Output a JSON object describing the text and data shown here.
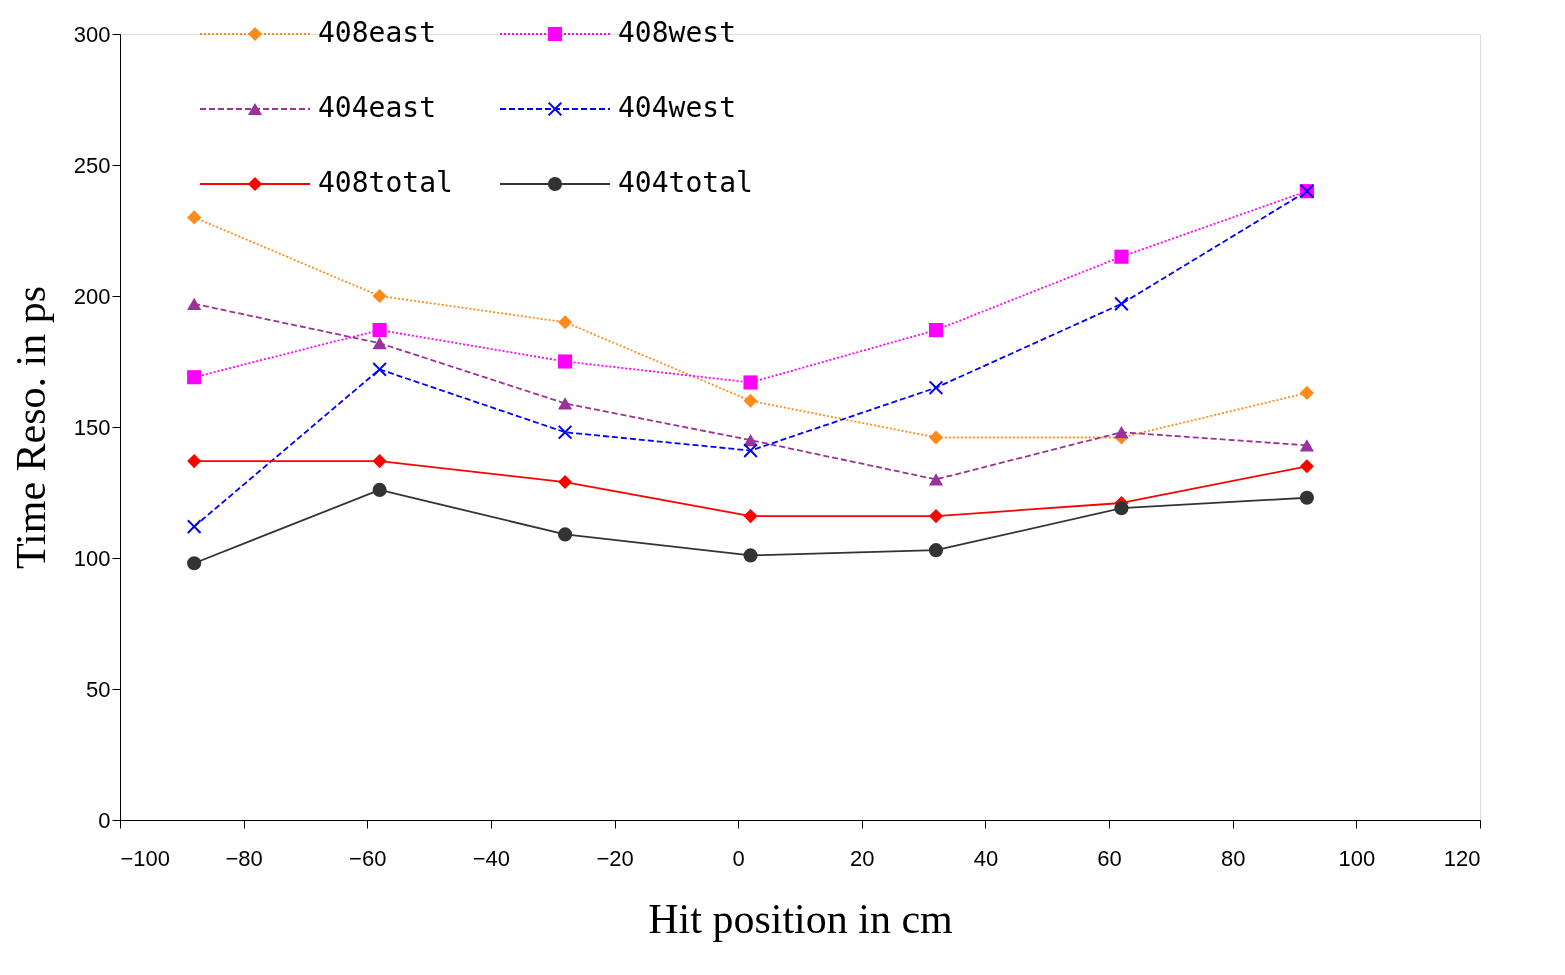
{
  "chart_data": {
    "type": "line",
    "xlabel": "Hit position in cm",
    "ylabel": "Time Reso. in ps",
    "x": [
      -88,
      -58,
      -28,
      2,
      32,
      62,
      92
    ],
    "xlim": [
      -100,
      120
    ],
    "xticks": [
      -100,
      -80,
      -60,
      -40,
      -20,
      0,
      20,
      40,
      60,
      80,
      100,
      120
    ],
    "ylim": [
      0,
      300
    ],
    "yticks": [
      0,
      50,
      100,
      150,
      200,
      250,
      300
    ],
    "grid": false,
    "legend": "top left",
    "series": [
      {
        "name": "408east",
        "color": "#ff8c1a",
        "marker": "diamond",
        "line_style": "dotted",
        "values": [
          230,
          200,
          190,
          160,
          146,
          146,
          163
        ]
      },
      {
        "name": "408west",
        "color": "#ff00ff",
        "marker": "square",
        "line_style": "dotted",
        "values": [
          169,
          187,
          175,
          167,
          187,
          215,
          240
        ]
      },
      {
        "name": "404east",
        "color": "#993399",
        "marker": "triangle",
        "line_style": "dashed",
        "values": [
          197,
          182,
          159,
          145,
          130,
          148,
          143
        ]
      },
      {
        "name": "404west",
        "color": "#0000ff",
        "marker": "cross",
        "line_style": "dashed",
        "values": [
          112,
          172,
          148,
          141,
          165,
          197,
          240
        ]
      },
      {
        "name": "408total",
        "color": "#ff0000",
        "marker": "diamond",
        "line_style": "solid",
        "values": [
          137,
          137,
          129,
          116,
          116,
          121,
          135
        ]
      },
      {
        "name": "404total",
        "color": "#333333",
        "marker": "circle",
        "line_style": "solid",
        "values": [
          98,
          126,
          109,
          101,
          103,
          119,
          123
        ]
      }
    ]
  }
}
